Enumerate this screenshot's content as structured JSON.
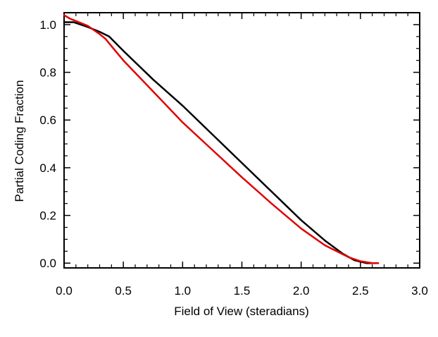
{
  "chart_data": {
    "type": "line",
    "title": "",
    "xlabel": "Field of View (steradians)",
    "ylabel": "Partial Coding Fraction",
    "xlim": [
      0.0,
      3.0
    ],
    "ylim": [
      -0.02,
      1.05
    ],
    "xticks": [
      0.0,
      0.5,
      1.0,
      1.5,
      2.0,
      2.5,
      3.0
    ],
    "xtick_labels": [
      "0.0",
      "0.5",
      "1.0",
      "1.5",
      "2.0",
      "2.5",
      "3.0"
    ],
    "yticks": [
      0.0,
      0.2,
      0.4,
      0.6,
      0.8,
      1.0
    ],
    "ytick_labels": [
      "0.0",
      "0.2",
      "0.4",
      "0.6",
      "0.8",
      "1.0"
    ],
    "grid": false,
    "legend": "none",
    "series": [
      {
        "color": "#000000",
        "x": [
          0.0,
          0.08,
          0.2,
          0.3,
          0.38,
          0.5,
          0.75,
          1.0,
          1.25,
          1.5,
          1.75,
          2.0,
          2.2,
          2.35,
          2.45,
          2.55,
          2.62
        ],
        "y": [
          1.01,
          1.01,
          0.99,
          0.97,
          0.95,
          0.89,
          0.77,
          0.66,
          0.54,
          0.42,
          0.3,
          0.18,
          0.095,
          0.04,
          0.012,
          0.0,
          0.0
        ]
      },
      {
        "color": "#e00000",
        "x": [
          0.0,
          0.05,
          0.1,
          0.2,
          0.3,
          0.35,
          0.4,
          0.5,
          0.75,
          1.0,
          1.25,
          1.5,
          1.75,
          2.0,
          2.2,
          2.4,
          2.5,
          2.6,
          2.65
        ],
        "y": [
          1.04,
          1.025,
          1.015,
          0.995,
          0.96,
          0.94,
          0.91,
          0.85,
          0.72,
          0.59,
          0.475,
          0.36,
          0.25,
          0.145,
          0.075,
          0.025,
          0.008,
          0.0,
          0.0
        ]
      }
    ]
  }
}
